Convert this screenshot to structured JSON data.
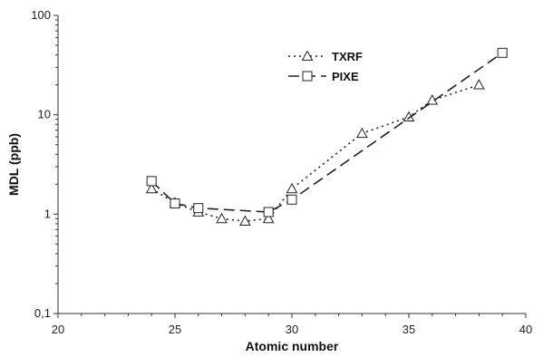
{
  "chart_data": {
    "type": "line",
    "title": "",
    "xlabel": "Atomic number",
    "ylabel": "MDL (ppb)",
    "xlim": [
      20,
      40
    ],
    "ylim": [
      0.1,
      100
    ],
    "yscale": "log",
    "xticks": [
      20,
      25,
      30,
      35,
      40
    ],
    "xtick_labels": [
      "20",
      "25",
      "30",
      "35",
      "40"
    ],
    "yticks": [
      0.1,
      1,
      10,
      100
    ],
    "ytick_labels": [
      "0,1",
      "1",
      "10",
      "100"
    ],
    "grid": false,
    "legend_position": "top-center",
    "series": [
      {
        "name": "TXRF",
        "marker": "triangle-open",
        "line_style": "dotted",
        "color": "#222222",
        "x": [
          24,
          25,
          26,
          27,
          28,
          29,
          30,
          33,
          35,
          36,
          38
        ],
        "y": [
          1.8,
          1.3,
          1.05,
          0.9,
          0.85,
          0.9,
          1.8,
          6.5,
          9.5,
          14,
          20
        ]
      },
      {
        "name": "PIXE",
        "marker": "square-open",
        "line_style": "dashed",
        "color": "#222222",
        "x": [
          24,
          25,
          26,
          29,
          30,
          39
        ],
        "y": [
          2.15,
          1.28,
          1.15,
          1.05,
          1.4,
          42
        ]
      }
    ]
  }
}
